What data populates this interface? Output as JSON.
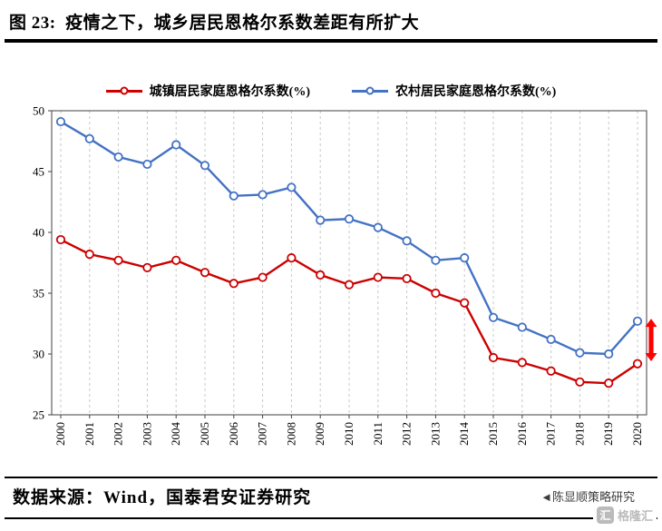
{
  "header": {
    "title": "图 23:  疫情之下，城乡居民恩格尔系数差距有所扩大"
  },
  "chart_data": {
    "type": "line",
    "title": "疫情之下，城乡居民恩格尔系数差距有所扩大",
    "categories": [
      "2000",
      "2001",
      "2002",
      "2003",
      "2004",
      "2005",
      "2006",
      "2007",
      "2008",
      "2009",
      "2010",
      "2011",
      "2012",
      "2013",
      "2014",
      "2015",
      "2016",
      "2017",
      "2018",
      "2019",
      "2020"
    ],
    "series": [
      {
        "name": "城镇居民家庭恩格尔系数(%)",
        "color": "#CC0000",
        "values": [
          39.4,
          38.2,
          37.7,
          37.1,
          37.7,
          36.7,
          35.8,
          36.3,
          37.9,
          36.5,
          35.7,
          36.3,
          36.2,
          35.0,
          34.2,
          29.7,
          29.3,
          28.6,
          27.7,
          27.6,
          29.2
        ]
      },
      {
        "name": "农村居民家庭恩格尔系数(%)",
        "color": "#4472C4",
        "values": [
          49.1,
          47.7,
          46.2,
          45.6,
          47.2,
          45.5,
          43.0,
          43.1,
          43.7,
          41.0,
          41.1,
          40.4,
          39.3,
          37.7,
          37.9,
          33.0,
          32.2,
          31.2,
          30.1,
          30.0,
          32.7
        ]
      }
    ],
    "ylim": [
      25,
      50
    ],
    "yticks": [
      25,
      30,
      35,
      40,
      45,
      50
    ],
    "legend_position": "top",
    "grid": "vertical-dashed",
    "annotation": {
      "type": "double-arrow",
      "color": "#FF0000",
      "at_category": "2020",
      "from": 32.9,
      "to": 29.4
    }
  },
  "footer": {
    "source": "数据来源：Wind，国泰君安证券研究",
    "credit": "◄陈显顺策略研究",
    "watermark": {
      "icon_glyph": "汇",
      "text": "格隆汇"
    }
  }
}
